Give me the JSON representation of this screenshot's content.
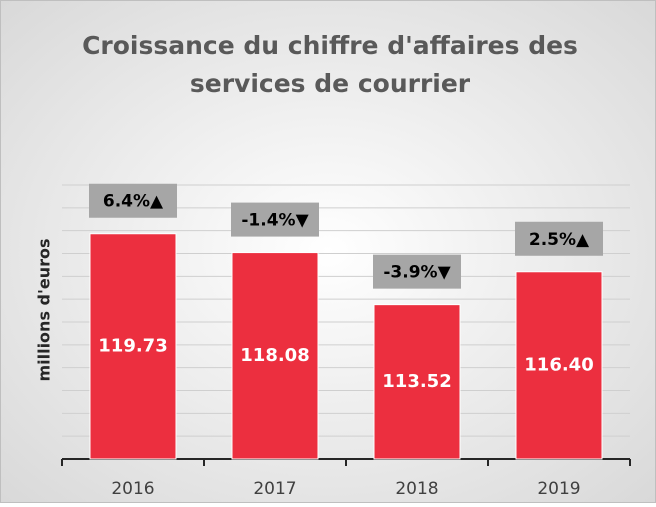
{
  "chart_data": {
    "type": "bar",
    "title": [
      "Croissance du chiffre d'affaires des",
      "services de courrier"
    ],
    "y_label": "millions d'euros",
    "categories": [
      "2016",
      "2017",
      "2018",
      "2019"
    ],
    "values": [
      119.73,
      118.08,
      113.52,
      116.4
    ],
    "value_labels": [
      "119.73",
      "118.08",
      "113.52",
      "116.40"
    ],
    "annotations": [
      "6.4%▲",
      "-1.4%▼",
      "-3.9%▼",
      "2.5%▲"
    ],
    "color": "#ec2f3f",
    "ylim": [
      100,
      124
    ],
    "yticks": [
      100,
      102,
      104,
      106,
      108,
      110,
      112,
      114,
      116,
      118,
      120,
      122,
      124
    ],
    "grid": true
  }
}
